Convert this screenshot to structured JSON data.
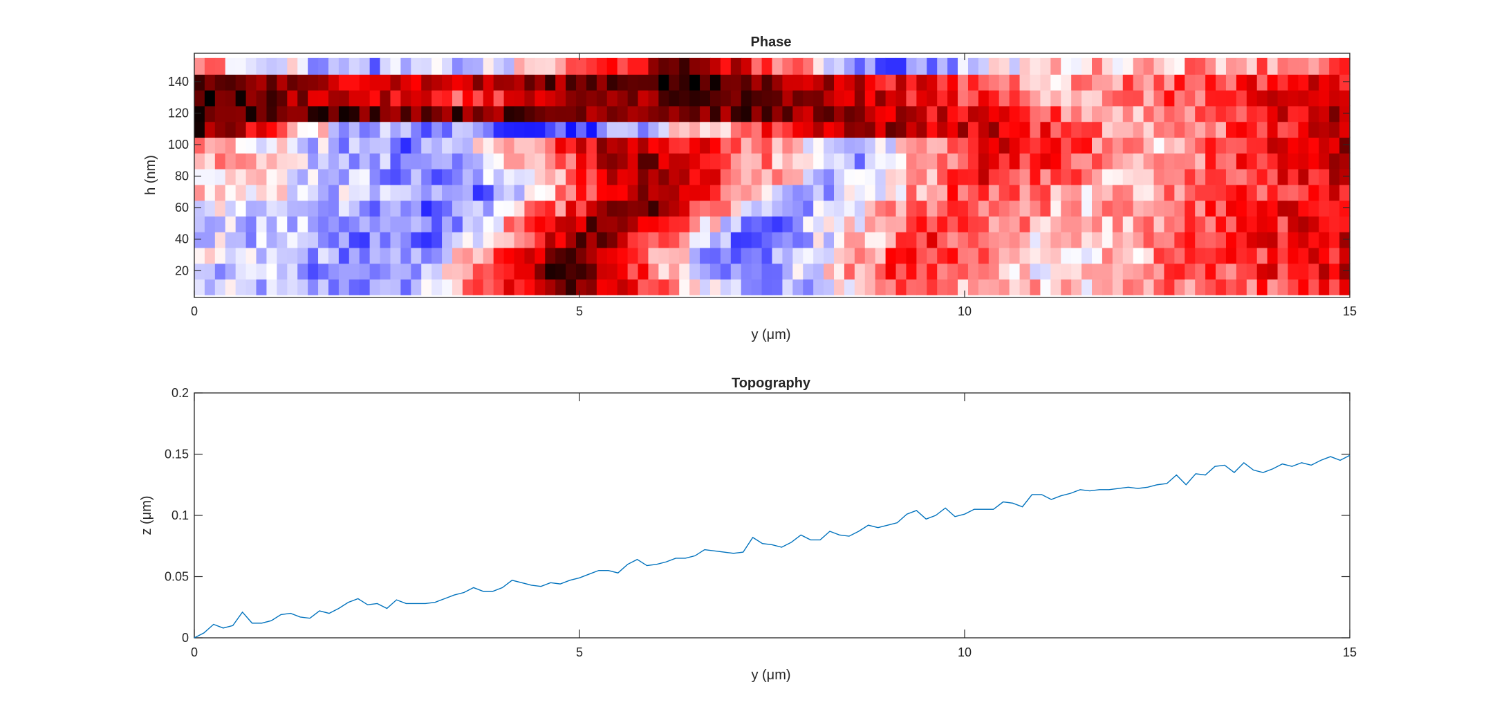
{
  "chart_data": [
    {
      "type": "heatmap",
      "title": "Phase",
      "xlabel": "y (μm)",
      "ylabel": "h (nm)",
      "xlim": [
        0,
        15
      ],
      "ylim": [
        3,
        158
      ],
      "xticks": [
        0,
        5,
        10,
        15
      ],
      "xtick_labels": [
        "0",
        "5",
        "10",
        "15"
      ],
      "yticks": [
        20,
        40,
        60,
        80,
        100,
        120,
        140
      ],
      "ytick_labels": [
        "20",
        "40",
        "60",
        "80",
        "100",
        "120",
        "140"
      ],
      "colormap": [
        "#0000ff",
        "#ffffff",
        "#ff0000",
        "#000000"
      ],
      "colormap_positions": [
        0,
        0.35,
        0.65,
        1
      ],
      "n_columns": 112,
      "n_rows": 15,
      "row_h_values": [
        10,
        20,
        30,
        40,
        50,
        60,
        70,
        80,
        90,
        100,
        110,
        120,
        130,
        140,
        150
      ],
      "row_boundaries": [
        {
          "y": [
            0,
            2.6,
            4.8,
            7.5,
            9.0,
            11.2,
            15
          ],
          "v": [
            0.28,
            0.18,
            0.85,
            0.15,
            0.55,
            0.4,
            0.62
          ]
        },
        {
          "y": [
            0,
            2.6,
            4.8,
            7.2,
            9.2,
            11.0,
            15
          ],
          "v": [
            0.3,
            0.15,
            0.92,
            0.12,
            0.6,
            0.38,
            0.7
          ]
        },
        {
          "y": [
            0,
            2.8,
            5.0,
            7.0,
            9.4,
            11.0,
            15
          ],
          "v": [
            0.32,
            0.16,
            0.9,
            0.1,
            0.62,
            0.36,
            0.68
          ]
        },
        {
          "y": [
            0,
            3.0,
            5.2,
            7.2,
            9.6,
            11.2,
            15
          ],
          "v": [
            0.3,
            0.14,
            0.88,
            0.12,
            0.6,
            0.38,
            0.72
          ]
        },
        {
          "y": [
            0,
            3.2,
            5.4,
            7.4,
            9.8,
            11.4,
            15
          ],
          "v": [
            0.32,
            0.15,
            0.9,
            0.14,
            0.62,
            0.4,
            0.7
          ]
        },
        {
          "y": [
            0,
            3.4,
            5.8,
            7.6,
            9.8,
            11.6,
            15
          ],
          "v": [
            0.34,
            0.14,
            0.88,
            0.15,
            0.6,
            0.42,
            0.72
          ]
        },
        {
          "y": [
            0,
            3.6,
            6.0,
            8.0,
            10.0,
            11.8,
            15
          ],
          "v": [
            0.42,
            0.15,
            0.85,
            0.18,
            0.6,
            0.42,
            0.7
          ]
        },
        {
          "y": [
            0,
            3.4,
            6.0,
            8.4,
            10.2,
            12.0,
            15
          ],
          "v": [
            0.45,
            0.14,
            0.82,
            0.22,
            0.65,
            0.45,
            0.72
          ]
        },
        {
          "y": [
            0,
            3.2,
            5.8,
            8.6,
            10.4,
            12.2,
            15
          ],
          "v": [
            0.46,
            0.14,
            0.82,
            0.22,
            0.7,
            0.42,
            0.75
          ]
        },
        {
          "y": [
            0,
            2.8,
            5.6,
            8.8,
            10.6,
            12.4,
            15
          ],
          "v": [
            0.48,
            0.14,
            0.8,
            0.24,
            0.72,
            0.42,
            0.78
          ]
        },
        {
          "y": [
            0,
            2.0,
            5.0,
            8.5,
            10.4,
            12.2,
            15
          ],
          "v": [
            0.9,
            0.25,
            0.1,
            0.8,
            0.7,
            0.42,
            0.72
          ]
        },
        {
          "y": [
            0,
            1.5,
            4.0,
            7.5,
            10.0,
            12.0,
            15
          ],
          "v": [
            0.92,
            0.9,
            0.85,
            0.85,
            0.65,
            0.45,
            0.75
          ]
        },
        {
          "y": [
            0,
            1.5,
            3.5,
            6.5,
            9.5,
            11.6,
            15
          ],
          "v": [
            0.95,
            0.78,
            0.6,
            0.9,
            0.65,
            0.45,
            0.72
          ]
        },
        {
          "y": [
            0,
            1.5,
            3.5,
            6.0,
            9.0,
            11.2,
            15
          ],
          "v": [
            0.9,
            0.75,
            0.72,
            0.95,
            0.68,
            0.45,
            0.7
          ]
        },
        {
          "y": [
            0,
            2.0,
            4.0,
            6.5,
            9.0,
            11.0,
            15
          ],
          "v": [
            0.5,
            0.2,
            0.3,
            0.85,
            0.12,
            0.4,
            0.55
          ]
        }
      ]
    },
    {
      "type": "line",
      "title": "Topography",
      "xlabel": "y (μm)",
      "ylabel": "z (μm)",
      "xlim": [
        0,
        15
      ],
      "ylim": [
        0,
        0.2
      ],
      "xticks": [
        0,
        5,
        10,
        15
      ],
      "xtick_labels": [
        "0",
        "5",
        "10",
        "15"
      ],
      "yticks": [
        0,
        0.05,
        0.1,
        0.15,
        0.2
      ],
      "ytick_labels": [
        "0",
        "0.05",
        "0.1",
        "0.15",
        "0.2"
      ],
      "color": "#0072bd",
      "x": [
        0,
        0.125,
        0.25,
        0.375,
        0.5,
        0.625,
        0.75,
        0.875,
        1.0,
        1.125,
        1.25,
        1.375,
        1.5,
        1.625,
        1.75,
        1.875,
        2.0,
        2.125,
        2.25,
        2.375,
        2.5,
        2.625,
        2.75,
        2.875,
        3.0,
        3.125,
        3.25,
        3.375,
        3.5,
        3.625,
        3.75,
        3.875,
        4.0,
        4.125,
        4.25,
        4.375,
        4.5,
        4.625,
        4.75,
        4.875,
        5.0,
        5.125,
        5.25,
        5.375,
        5.5,
        5.625,
        5.75,
        5.875,
        6.0,
        6.125,
        6.25,
        6.375,
        6.5,
        6.625,
        6.75,
        6.875,
        7.0,
        7.125,
        7.25,
        7.375,
        7.5,
        7.625,
        7.75,
        7.875,
        8.0,
        8.125,
        8.25,
        8.375,
        8.5,
        8.625,
        8.75,
        8.875,
        9.0,
        9.125,
        9.25,
        9.375,
        9.5,
        9.625,
        9.75,
        9.875,
        10.0,
        10.125,
        10.25,
        10.375,
        10.5,
        10.625,
        10.75,
        10.875,
        11.0,
        11.125,
        11.25,
        11.375,
        11.5,
        11.625,
        11.75,
        11.875,
        12.0,
        12.125,
        12.25,
        12.375,
        12.5,
        12.625,
        12.75,
        12.875,
        13.0,
        13.125,
        13.25,
        13.375,
        13.5,
        13.625,
        13.75,
        13.875,
        14.0,
        14.125,
        14.25,
        14.375,
        14.5,
        14.625,
        14.75,
        14.875,
        15.0
      ],
      "y": [
        0.0,
        0.004,
        0.011,
        0.008,
        0.01,
        0.021,
        0.012,
        0.012,
        0.014,
        0.019,
        0.02,
        0.017,
        0.016,
        0.022,
        0.02,
        0.024,
        0.029,
        0.032,
        0.027,
        0.028,
        0.024,
        0.031,
        0.028,
        0.028,
        0.028,
        0.029,
        0.032,
        0.035,
        0.037,
        0.041,
        0.038,
        0.038,
        0.041,
        0.047,
        0.045,
        0.043,
        0.042,
        0.045,
        0.044,
        0.047,
        0.049,
        0.052,
        0.055,
        0.055,
        0.053,
        0.06,
        0.064,
        0.059,
        0.06,
        0.062,
        0.065,
        0.065,
        0.067,
        0.072,
        0.071,
        0.07,
        0.069,
        0.07,
        0.082,
        0.077,
        0.076,
        0.074,
        0.078,
        0.084,
        0.08,
        0.08,
        0.087,
        0.084,
        0.083,
        0.087,
        0.092,
        0.09,
        0.092,
        0.094,
        0.101,
        0.104,
        0.097,
        0.1,
        0.106,
        0.099,
        0.101,
        0.105,
        0.105,
        0.105,
        0.111,
        0.11,
        0.107,
        0.117,
        0.117,
        0.113,
        0.116,
        0.118,
        0.121,
        0.12,
        0.121,
        0.121,
        0.122,
        0.123,
        0.122,
        0.123,
        0.125,
        0.126,
        0.133,
        0.125,
        0.134,
        0.133,
        0.14,
        0.141,
        0.135,
        0.143,
        0.137,
        0.135,
        0.138,
        0.142,
        0.14,
        0.143,
        0.141,
        0.145,
        0.148,
        0.145,
        0.149
      ]
    }
  ]
}
